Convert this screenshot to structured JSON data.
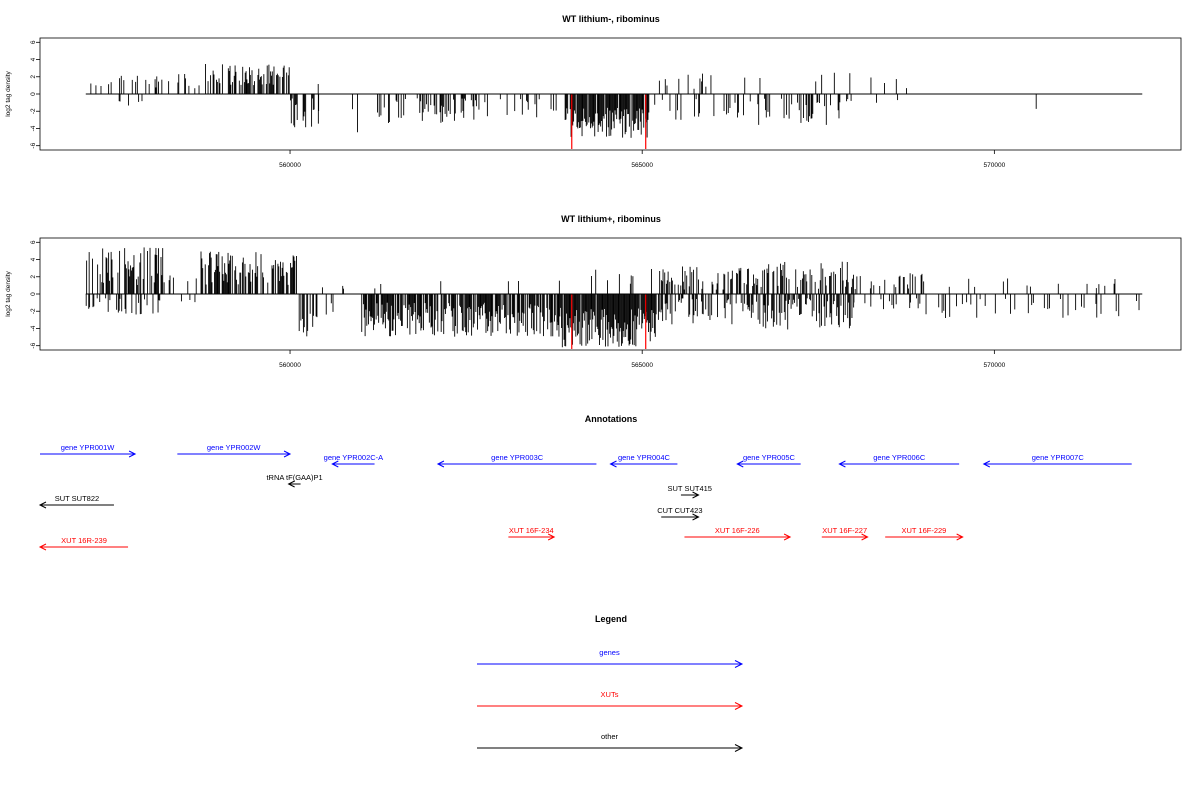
{
  "chart_data": [
    {
      "type": "bar",
      "title": "WT lithium-, ribominus",
      "ylabel": "log2 tag density",
      "xlabel": "",
      "ylim": [
        -6.5,
        6.5
      ],
      "xlim": [
        556450,
        572650
      ],
      "yticks": [
        -6,
        -4,
        -2,
        0,
        2,
        4,
        6
      ],
      "xticks": [
        560000,
        565000,
        570000
      ],
      "xtick_labels": [
        "560000",
        "565000",
        "570000"
      ],
      "line_range": [
        557100,
        572100
      ],
      "colors": {
        "bar": "#000000",
        "highlight": "#ff0000"
      },
      "density_regions": [
        {
          "start": 557100,
          "end": 557400,
          "pos": [
            0.6,
            1.3
          ],
          "neg": [
            0,
            0
          ],
          "p_pos": 0.2,
          "p_neg": 0.0
        },
        {
          "start": 557400,
          "end": 558800,
          "pos": [
            0.5,
            2.5
          ],
          "neg": [
            0.5,
            1.8
          ],
          "p_pos": 0.25,
          "p_neg": 0.03
        },
        {
          "start": 558800,
          "end": 560000,
          "pos": [
            1.0,
            3.5
          ],
          "neg": [
            0,
            0
          ],
          "p_pos": 0.6,
          "p_neg": 0.0
        },
        {
          "start": 560000,
          "end": 560400,
          "pos": [
            0,
            0
          ],
          "neg": [
            0.5,
            4.0
          ],
          "p_pos": 0.0,
          "p_neg": 0.45
        },
        {
          "start": 560400,
          "end": 561200,
          "pos": [
            0.5,
            1.6
          ],
          "neg": [
            0.5,
            4.6
          ],
          "p_pos": 0.02,
          "p_neg": 0.06
        },
        {
          "start": 561200,
          "end": 562800,
          "pos": [
            0,
            0
          ],
          "neg": [
            0.5,
            3.6
          ],
          "p_pos": 0.0,
          "p_neg": 0.35
        },
        {
          "start": 562800,
          "end": 563900,
          "pos": [
            0,
            0
          ],
          "neg": [
            0.5,
            3.0
          ],
          "p_pos": 0.0,
          "p_neg": 0.18
        },
        {
          "start": 563900,
          "end": 565100,
          "pos": [
            0,
            0
          ],
          "neg": [
            1.5,
            5.2
          ],
          "p_pos": 0.0,
          "p_neg": 0.9
        },
        {
          "start": 565100,
          "end": 566600,
          "pos": [
            0.5,
            2.5
          ],
          "neg": [
            0.5,
            3.2
          ],
          "p_pos": 0.05,
          "p_neg": 0.12
        },
        {
          "start": 566600,
          "end": 567900,
          "pos": [
            0.5,
            2.6
          ],
          "neg": [
            0.5,
            3.6
          ],
          "p_pos": 0.04,
          "p_neg": 0.28
        },
        {
          "start": 567900,
          "end": 568800,
          "pos": [
            0.5,
            2.6
          ],
          "neg": [
            0.5,
            1.2
          ],
          "p_pos": 0.04,
          "p_neg": 0.03
        },
        {
          "start": 568800,
          "end": 572100,
          "pos": [
            0,
            0
          ],
          "neg": [
            1.5,
            3.2
          ],
          "p_pos": 0.0,
          "p_neg": 0.006
        }
      ],
      "highlights": [
        {
          "x": 564000,
          "y": -6.5
        },
        {
          "x": 565050,
          "y": -6.5
        }
      ]
    },
    {
      "type": "bar",
      "title": "WT lithium+, ribominus",
      "ylabel": "log2 tag density",
      "xlabel": "",
      "ylim": [
        -6.5,
        6.5
      ],
      "xlim": [
        556450,
        572650
      ],
      "yticks": [
        -6,
        -4,
        -2,
        0,
        2,
        4,
        6
      ],
      "xticks": [
        560000,
        565000,
        570000
      ],
      "xtick_labels": [
        "560000",
        "565000",
        "570000"
      ],
      "line_range": [
        557100,
        572100
      ],
      "colors": {
        "bar": "#000000",
        "highlight": "#ff0000"
      },
      "density_regions": [
        {
          "start": 557100,
          "end": 558200,
          "pos": [
            1.0,
            5.5
          ],
          "neg": [
            0.5,
            2.4
          ],
          "p_pos": 0.55,
          "p_neg": 0.25
        },
        {
          "start": 558200,
          "end": 558700,
          "pos": [
            0.5,
            2.5
          ],
          "neg": [
            0.5,
            1.0
          ],
          "p_pos": 0.25,
          "p_neg": 0.08
        },
        {
          "start": 558700,
          "end": 560100,
          "pos": [
            1.0,
            5.0
          ],
          "neg": [
            0,
            0
          ],
          "p_pos": 0.7,
          "p_neg": 0.0
        },
        {
          "start": 560100,
          "end": 560400,
          "pos": [
            0,
            0
          ],
          "neg": [
            1.0,
            5.2
          ],
          "p_pos": 0.0,
          "p_neg": 0.5
        },
        {
          "start": 560400,
          "end": 561000,
          "pos": [
            0.5,
            1.5
          ],
          "neg": [
            0.5,
            3.0
          ],
          "p_pos": 0.03,
          "p_neg": 0.08
        },
        {
          "start": 561000,
          "end": 563800,
          "pos": [
            0.5,
            2.0
          ],
          "neg": [
            1.0,
            5.0
          ],
          "p_pos": 0.03,
          "p_neg": 0.75
        },
        {
          "start": 563800,
          "end": 565200,
          "pos": [
            1.0,
            3.0
          ],
          "neg": [
            1.5,
            6.2
          ],
          "p_pos": 0.05,
          "p_neg": 0.95
        },
        {
          "start": 565200,
          "end": 566700,
          "pos": [
            0.5,
            3.2
          ],
          "neg": [
            0.5,
            3.6
          ],
          "p_pos": 0.4,
          "p_neg": 0.4
        },
        {
          "start": 566700,
          "end": 568000,
          "pos": [
            0.5,
            3.8
          ],
          "neg": [
            0.5,
            4.2
          ],
          "p_pos": 0.35,
          "p_neg": 0.55
        },
        {
          "start": 568000,
          "end": 569000,
          "pos": [
            0.5,
            2.6
          ],
          "neg": [
            0.5,
            2.0
          ],
          "p_pos": 0.3,
          "p_neg": 0.15
        },
        {
          "start": 569000,
          "end": 572100,
          "pos": [
            0.5,
            1.8
          ],
          "neg": [
            0.5,
            2.8
          ],
          "p_pos": 0.04,
          "p_neg": 0.14
        }
      ],
      "highlights": [
        {
          "x": 564000,
          "y": -6.5
        },
        {
          "x": 565050,
          "y": -6.5
        }
      ]
    }
  ],
  "annotations": {
    "title": "Annotations",
    "features": [
      {
        "label": "gene YPR001W",
        "type": "gene",
        "start": 556450,
        "end": 557800,
        "dir": "right",
        "row": 0
      },
      {
        "label": "gene YPR002W",
        "type": "gene",
        "start": 558400,
        "end": 560000,
        "dir": "right",
        "row": 0
      },
      {
        "label": "gene YPR002C-A",
        "type": "gene",
        "start": 560600,
        "end": 561200,
        "dir": "left",
        "row": 1
      },
      {
        "label": "gene YPR003C",
        "type": "gene",
        "start": 562100,
        "end": 564350,
        "dir": "left",
        "row": 1
      },
      {
        "label": "gene YPR004C",
        "type": "gene",
        "start": 564550,
        "end": 565500,
        "dir": "left",
        "row": 1
      },
      {
        "label": "gene YPR005C",
        "type": "gene",
        "start": 566350,
        "end": 567250,
        "dir": "left",
        "row": 1
      },
      {
        "label": "gene YPR006C",
        "type": "gene",
        "start": 567800,
        "end": 569500,
        "dir": "left",
        "row": 1
      },
      {
        "label": "gene YPR007C",
        "type": "gene",
        "start": 569850,
        "end": 571950,
        "dir": "left",
        "row": 1
      },
      {
        "label": "tRNA tF(GAA)P1",
        "type": "other",
        "start": 559980,
        "end": 560150,
        "dir": "left",
        "row": 2
      },
      {
        "label": "SUT SUT822",
        "type": "other",
        "start": 556450,
        "end": 557500,
        "dir": "left",
        "row": 3
      },
      {
        "label": "SUT SUT415",
        "type": "other",
        "start": 565550,
        "end": 565800,
        "dir": "right",
        "row": 4
      },
      {
        "label": "CUT CUT423",
        "type": "other",
        "start": 565270,
        "end": 565800,
        "dir": "right",
        "row": 5
      },
      {
        "label": "XUT 16F-234",
        "type": "xut",
        "start": 563100,
        "end": 563750,
        "dir": "right",
        "row": 6
      },
      {
        "label": "XUT 16F-226",
        "type": "xut",
        "start": 565600,
        "end": 567100,
        "dir": "right",
        "row": 6
      },
      {
        "label": "XUT 16F-227",
        "type": "xut",
        "start": 567550,
        "end": 568200,
        "dir": "right",
        "row": 6
      },
      {
        "label": "XUT 16F-229",
        "type": "xut",
        "start": 568450,
        "end": 569550,
        "dir": "right",
        "row": 6
      },
      {
        "label": "XUT 16R-239",
        "type": "xut",
        "start": 556450,
        "end": 557700,
        "dir": "left",
        "row": 7
      }
    ]
  },
  "legend": {
    "title": "Legend",
    "items": [
      {
        "label": "genes",
        "color": "#0000ff"
      },
      {
        "label": "XUTs",
        "color": "#ff0000"
      },
      {
        "label": "other",
        "color": "#000000"
      }
    ]
  },
  "colors": {
    "gene": "#0000ff",
    "xut": "#ff0000",
    "other": "#000000"
  }
}
